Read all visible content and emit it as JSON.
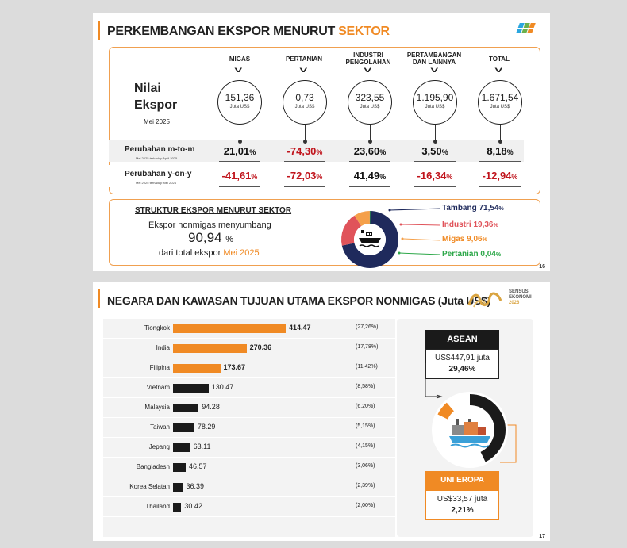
{
  "slide1": {
    "title_main": "PERKEMBANGAN EKSPOR MENURUT ",
    "title_accent": "SEKTOR",
    "page_number": "16",
    "nilai_label": "Nilai Ekspor",
    "nilai_line1": "Nilai",
    "nilai_line2": "Ekspor",
    "nilai_period": "Mei 2025",
    "unit": "Juta US$",
    "columns": [
      {
        "header": "MIGAS",
        "value": "151,36",
        "mtm": "21,01",
        "yoy": "-41,61"
      },
      {
        "header": "PERTANIAN",
        "value": "0,73",
        "mtm": "-74,30",
        "yoy": "-72,03"
      },
      {
        "header": "INDUSTRI PENGOLAHAN",
        "h1": "INDUSTRI",
        "h2": "PENGOLAHAN",
        "value": "323,55",
        "mtm": "23,60",
        "yoy": "41,49"
      },
      {
        "header": "PERTAMBANGAN DAN LAINNYA",
        "h1": "PERTAMBANGAN",
        "h2": "DAN LAINNYA",
        "value": "1.195,90",
        "mtm": "3,50",
        "yoy": "-16,34"
      },
      {
        "header": "TOTAL",
        "value": "1.671,54",
        "mtm": "8,18",
        "yoy": "-12,94"
      }
    ],
    "pct_sign": "%",
    "mtm_label": "Perubahan m-to-m",
    "mtm_sub": "Mei 2025 terhadap April 2025",
    "yoy_label": "Perubahan y-on-y",
    "yoy_sub": "Mei 2025 terhadap Mei 2024",
    "struktur": {
      "title": "STRUKTUR EKSPOR MENURUT SEKTOR",
      "line1": "Ekspor nonmigas menyumbang",
      "big_value": "90,94",
      "big_pct": "%",
      "line3": "dari total ekspor ",
      "line3_highlight": "Mei 2025",
      "donut": [
        {
          "name": "Tambang",
          "value": "71,54",
          "share": 71.54,
          "color": "#1f2a5c"
        },
        {
          "name": "Industri",
          "value": "19,36",
          "share": 19.36,
          "color": "#e0535a"
        },
        {
          "name": "Migas",
          "value": "9,06",
          "share": 9.06,
          "color": "#f5a04a"
        },
        {
          "name": "Pertanian",
          "value": "0,04",
          "share": 0.04,
          "color": "#2ea84a"
        }
      ]
    }
  },
  "slide2": {
    "title": "NEGARA DAN KAWASAN TUJUAN UTAMA EKSPOR NONMIGAS (Juta US$)",
    "page_number": "17",
    "sensus_line1": "SENSUS",
    "sensus_line2": "EKONOMI",
    "sensus_year": "2026",
    "chart_data": {
      "type": "bar",
      "orientation": "horizontal",
      "categories": [
        "Tiongkok",
        "India",
        "Filipina",
        "Vietnam",
        "Malaysia",
        "Taiwan",
        "Jepang",
        "Bangladesh",
        "Korea Selatan",
        "Thailand"
      ],
      "values": [
        414.47,
        270.36,
        173.67,
        130.47,
        94.28,
        78.29,
        63.11,
        46.57,
        36.39,
        30.42
      ],
      "value_labels": [
        "414.47",
        "270.36",
        "173.67",
        "130.47",
        "94.28",
        "78.29",
        "63.11",
        "46.57",
        "36.39",
        "30.42"
      ],
      "shares": [
        "(27,26%)",
        "(17,78%)",
        "(11,42%)",
        "(8,58%)",
        "(6,20%)",
        "(5,15%)",
        "(4,15%)",
        "(3,06%)",
        "(2,39%)",
        "(2,00%)"
      ],
      "colors": [
        "#f08a24",
        "#f08a24",
        "#f08a24",
        "#1a1a1a",
        "#1a1a1a",
        "#1a1a1a",
        "#1a1a1a",
        "#1a1a1a",
        "#1a1a1a",
        "#1a1a1a"
      ],
      "xlim": [
        0,
        460
      ]
    },
    "asean": {
      "label": "ASEAN",
      "value": "US$447,91 juta",
      "share": "29,46%",
      "share_frac": 0.2946
    },
    "eu": {
      "label": "UNI EROPA",
      "value": "US$33,57 juta",
      "share": "2,21%",
      "share_frac": 0.0221
    }
  }
}
